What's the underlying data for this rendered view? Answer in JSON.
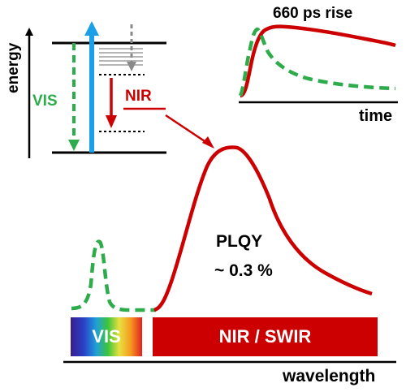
{
  "energy_diagram": {
    "axis_label": "energy",
    "vis_label": "VIS",
    "nir_label": "NIR"
  },
  "kinetics_inset": {
    "title": "660 ps rise",
    "axis_label": "time"
  },
  "spectrum": {
    "axis_label": "wavelength",
    "plqy_line1": "PLQY",
    "plqy_line2": "~ 0.3 %",
    "band_vis": "VIS",
    "band_nir": "NIR / SWIR"
  },
  "colors": {
    "red": "#cc0000",
    "green": "#2eab4a",
    "blue": "#1aa0e6",
    "gray": "#8a8a8a",
    "black": "#000000"
  }
}
